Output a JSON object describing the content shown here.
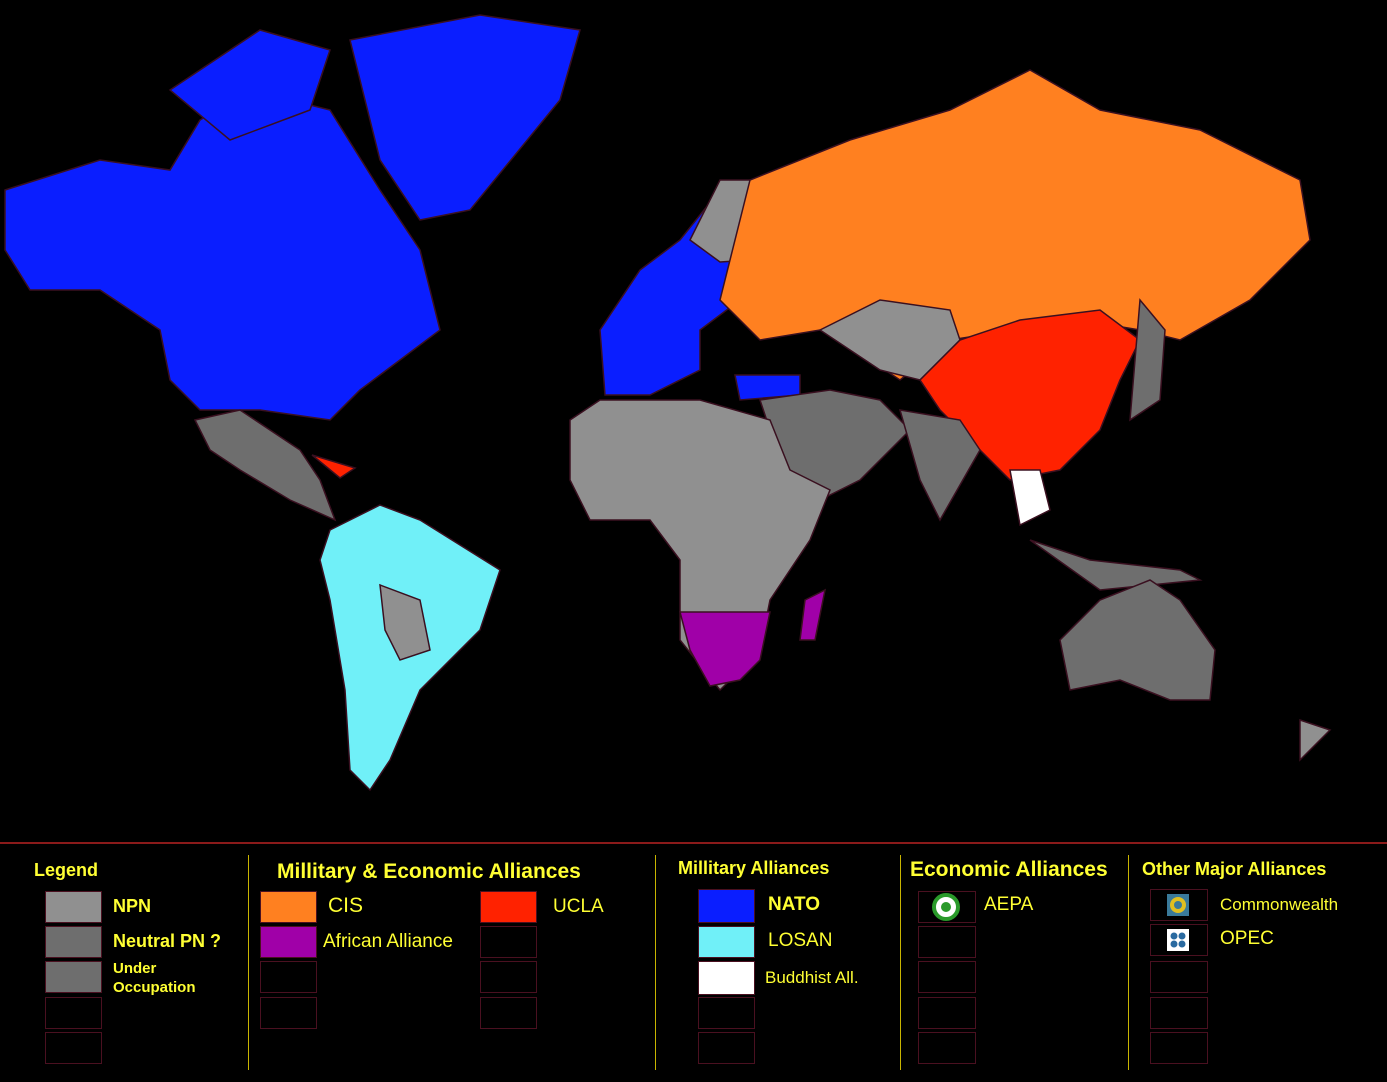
{
  "legend": {
    "title": "Legend",
    "items": [
      "NPN",
      "Neutral PN ?",
      "Under Occupation"
    ]
  },
  "military_economic": {
    "title": "Millitary & Economic Alliances",
    "items": [
      "CIS",
      "African Alliance",
      "UCLA"
    ]
  },
  "military": {
    "title": "Millitary Alliances",
    "items": [
      "NATO",
      "LOSAN",
      "Buddhist All."
    ]
  },
  "economic": {
    "title": "Economic Alliances",
    "items": [
      "AEPA"
    ]
  },
  "other": {
    "title": "Other Major Alliances",
    "items": [
      "Commonwealth",
      "OPEC"
    ]
  }
}
